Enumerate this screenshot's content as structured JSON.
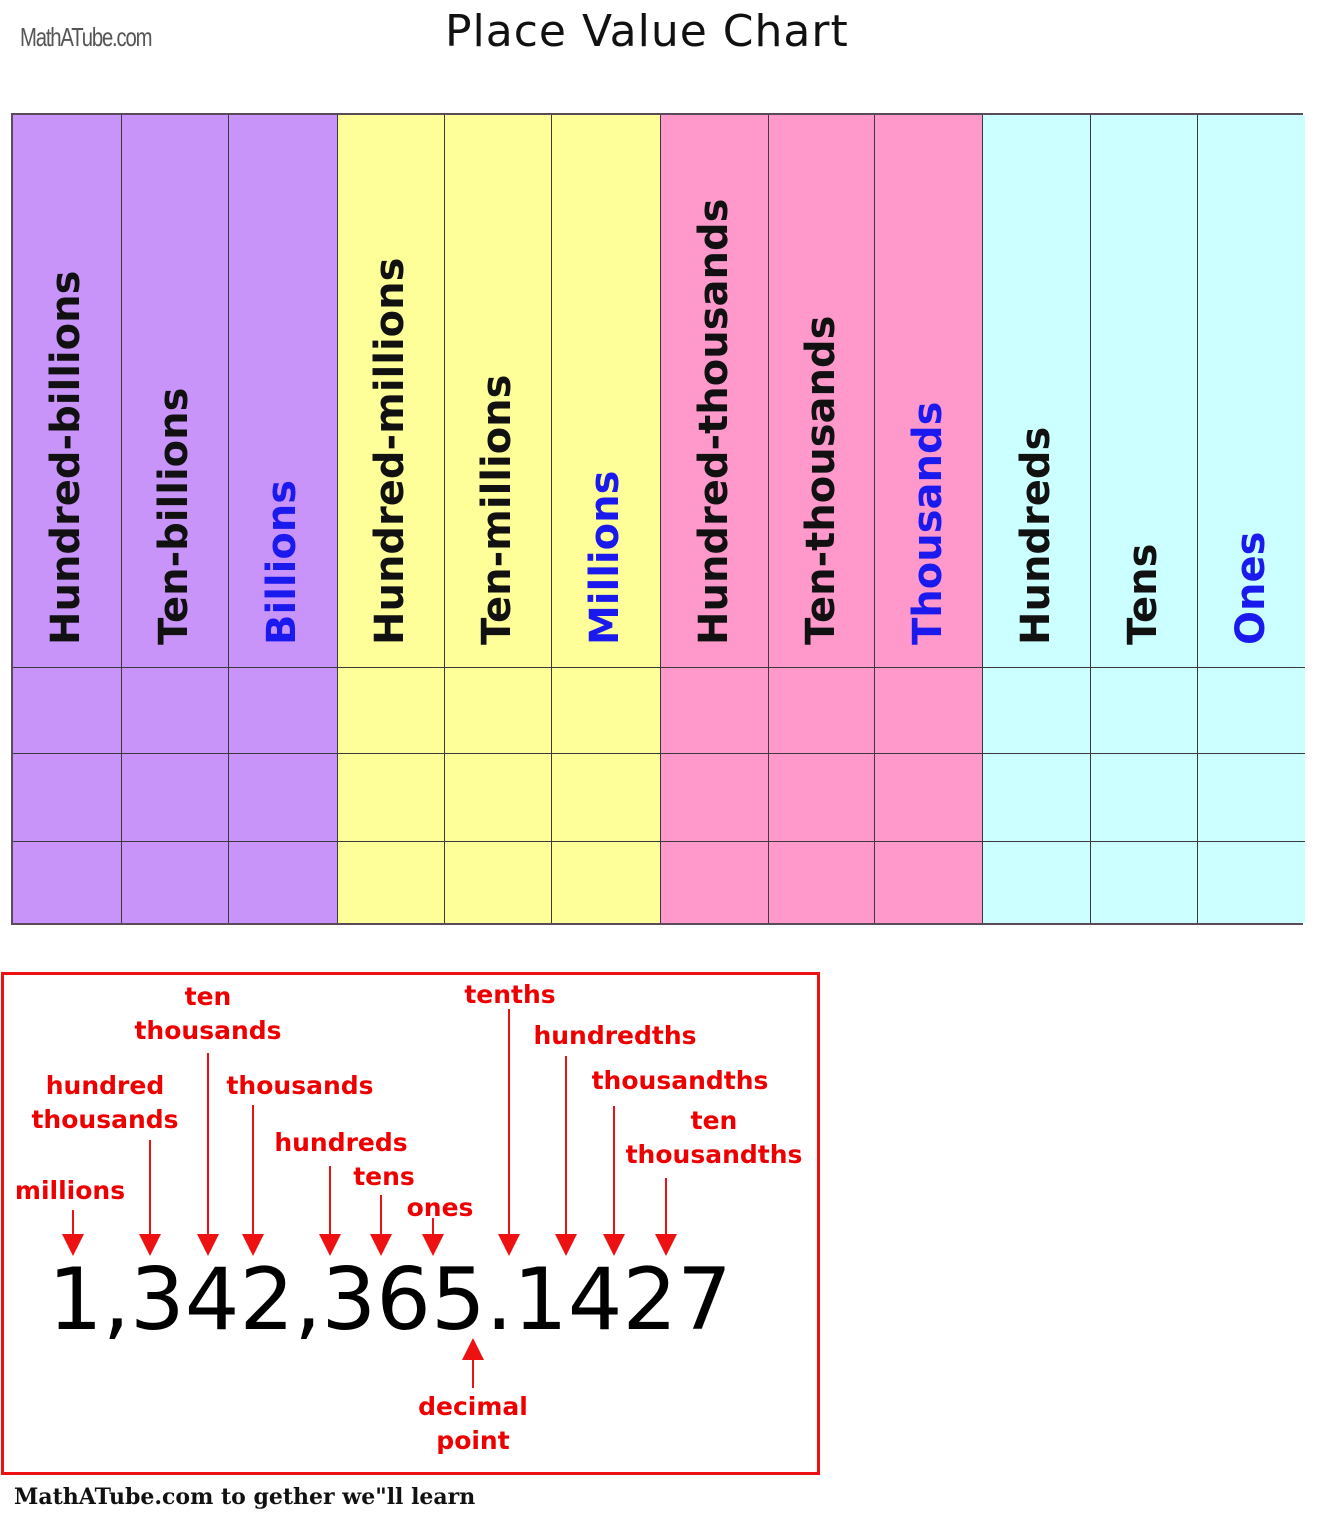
{
  "header": {
    "brand": "MathATube.com",
    "title": "Place Value Chart"
  },
  "colors": {
    "billions_group": "#c994fa",
    "millions_group": "#ffff99",
    "thousands_group": "#ff99cc",
    "ones_group": "#ccffff",
    "label_black": "#111111",
    "label_blue": "#1a1aee",
    "annotation_red": "#ee0000"
  },
  "chart_data": {
    "type": "table",
    "title": "Place Value Chart",
    "columns": [
      {
        "label": "Hundred-billions",
        "group": "billions",
        "emphasis": false
      },
      {
        "label": "Ten-billions",
        "group": "billions",
        "emphasis": false
      },
      {
        "label": "Billions",
        "group": "billions",
        "emphasis": true
      },
      {
        "label": "Hundred-millions",
        "group": "millions",
        "emphasis": false
      },
      {
        "label": "Ten-millions",
        "group": "millions",
        "emphasis": false
      },
      {
        "label": "Millions",
        "group": "millions",
        "emphasis": true
      },
      {
        "label": "Hundred-thousands",
        "group": "thousands",
        "emphasis": false
      },
      {
        "label": "Ten-thousands",
        "group": "thousands",
        "emphasis": false
      },
      {
        "label": "Thousands",
        "group": "thousands",
        "emphasis": true
      },
      {
        "label": "Hundreds",
        "group": "ones",
        "emphasis": false
      },
      {
        "label": "Tens",
        "group": "ones",
        "emphasis": false
      },
      {
        "label": "Ones",
        "group": "ones",
        "emphasis": true
      }
    ],
    "rows": [
      [
        "",
        "",
        "",
        "",
        "",
        "",
        "",
        "",
        "",
        "",
        "",
        ""
      ],
      [
        "",
        "",
        "",
        "",
        "",
        "",
        "",
        "",
        "",
        "",
        "",
        ""
      ],
      [
        "",
        "",
        "",
        "",
        "",
        "",
        "",
        "",
        "",
        "",
        "",
        ""
      ]
    ]
  },
  "example": {
    "number": "1,342,365.1427",
    "annotations": [
      {
        "label_lines": [
          "millions"
        ],
        "digit": "1"
      },
      {
        "label_lines": [
          "hundred",
          "thousands"
        ],
        "digit": "3"
      },
      {
        "label_lines": [
          "ten",
          "thousands"
        ],
        "digit": "4"
      },
      {
        "label_lines": [
          "thousands"
        ],
        "digit": "2"
      },
      {
        "label_lines": [
          "hundreds"
        ],
        "digit": "3"
      },
      {
        "label_lines": [
          "tens"
        ],
        "digit": "6"
      },
      {
        "label_lines": [
          "ones"
        ],
        "digit": "5"
      },
      {
        "label_lines": [
          "tenths"
        ],
        "digit": "1"
      },
      {
        "label_lines": [
          "hundredths"
        ],
        "digit": "4"
      },
      {
        "label_lines": [
          "thousandths"
        ],
        "digit": "2"
      },
      {
        "label_lines": [
          "ten",
          "thousandths"
        ],
        "digit": "7"
      }
    ],
    "decimal_point_label": [
      "decimal",
      "point"
    ]
  },
  "footer": {
    "text": "MathATube.com  to gether we\"ll learn"
  }
}
